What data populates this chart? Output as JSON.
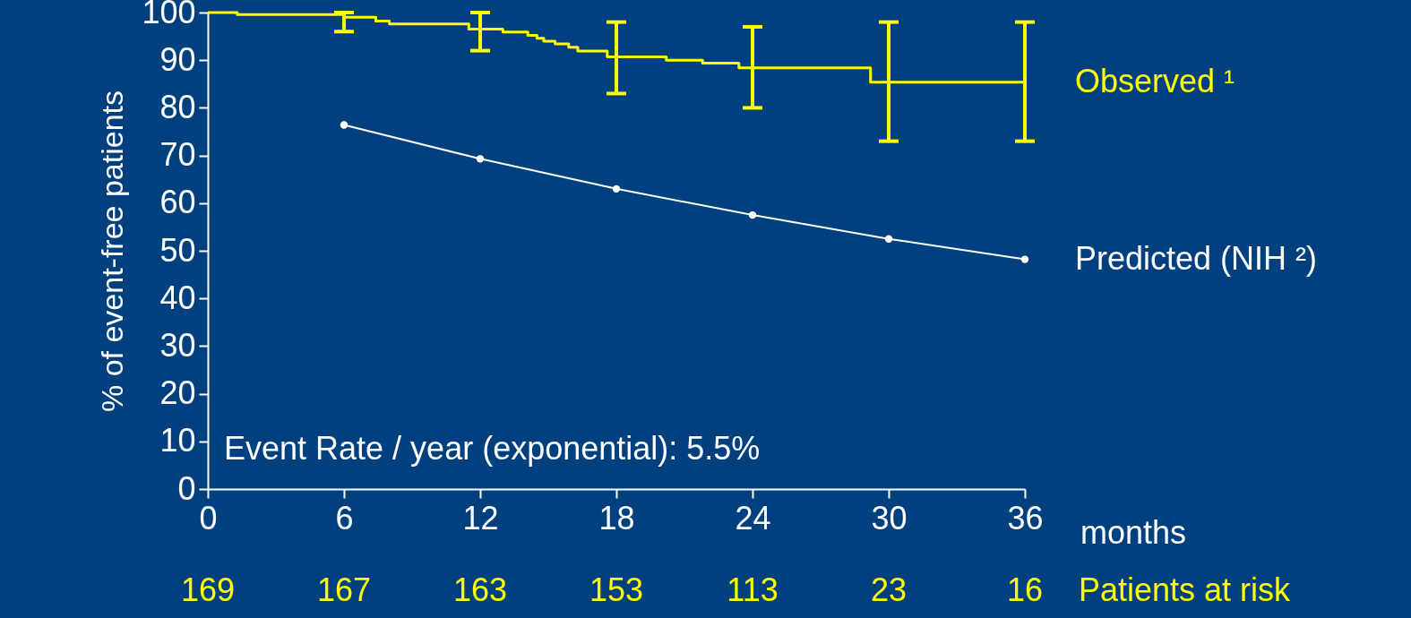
{
  "chart_data": {
    "type": "line",
    "xlabel": "months",
    "ylabel": "% of event-free patients",
    "xlim": [
      0,
      36
    ],
    "xticks": [
      0,
      6,
      12,
      18,
      24,
      30,
      36
    ],
    "ylim": [
      0,
      100
    ],
    "yticks": [
      0,
      10,
      20,
      30,
      40,
      50,
      60,
      70,
      80,
      90,
      100
    ],
    "grid": false,
    "legend": "right",
    "series": [
      {
        "name": "Observed ¹",
        "type": "step",
        "color": "#ffff00",
        "marker": "none",
        "x": [
          0,
          1.3,
          6,
          7.4,
          8,
          11.5,
          12,
          13,
          14.1,
          14.5,
          14.8,
          15.3,
          15.9,
          16.3,
          17.6,
          18,
          20.2,
          21.8,
          23.4,
          24,
          29.2,
          30,
          36
        ],
        "values": [
          100,
          99.6,
          99,
          98.2,
          97.6,
          96.5,
          96.5,
          95.9,
          95.2,
          94.6,
          94,
          93.4,
          92.7,
          91.9,
          90.7,
          90.7,
          90,
          89.4,
          88.4,
          88.4,
          85.4,
          85.4,
          85.4
        ],
        "errors": [
          null,
          null,
          [
            96,
            100
          ],
          null,
          null,
          null,
          [
            92,
            100
          ],
          null,
          null,
          null,
          null,
          null,
          null,
          null,
          null,
          [
            83,
            98
          ],
          null,
          null,
          null,
          [
            80,
            97
          ],
          null,
          [
            73,
            98
          ],
          [
            73,
            98
          ]
        ]
      },
      {
        "name": "Predicted (NIH ²)",
        "type": "line",
        "color": "#ffffff",
        "marker": "circle",
        "x": [
          6,
          12,
          18,
          24,
          30,
          36
        ],
        "values": [
          76.4,
          69.3,
          63.0,
          57.5,
          52.5,
          48.2
        ]
      }
    ],
    "annotations": [
      "Event Rate / year (exponential):  5.5%",
      "169",
      "167",
      "163",
      "153",
      "113",
      "23",
      "16",
      "Patients at risk"
    ]
  }
}
